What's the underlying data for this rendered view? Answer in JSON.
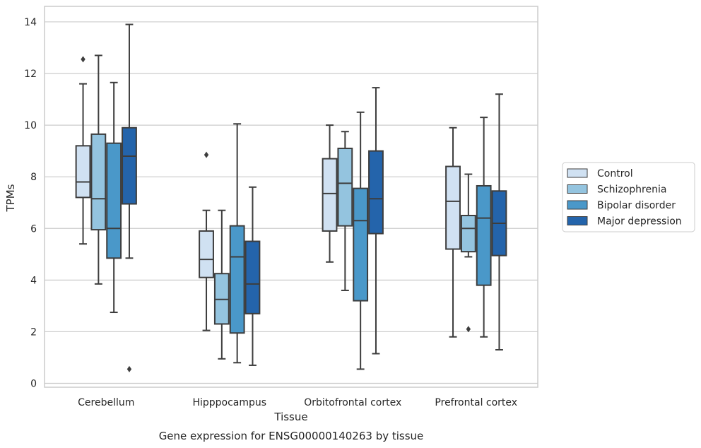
{
  "chart_data": {
    "type": "box",
    "caption": "Gene expression for ENSG00000140263 by tissue",
    "xlabel": "Tissue",
    "ylabel": "TPMs",
    "ylim": [
      -0.15,
      14.6
    ],
    "yticks": [
      0,
      2,
      4,
      6,
      8,
      10,
      12,
      14
    ],
    "grid": "horizontal",
    "legend_position": "right",
    "categories": [
      "Cerebellum",
      "Hipppocampus",
      "Orbitofrontal cortex",
      "Prefrontal cortex"
    ],
    "series": [
      {
        "name": "Control",
        "color": "#d0e1f2",
        "boxes": [
          {
            "whisker_low": 5.4,
            "q1": 7.2,
            "median": 7.8,
            "q3": 9.2,
            "whisker_high": 11.6,
            "outliers": [
              12.55
            ]
          },
          {
            "whisker_low": 2.05,
            "q1": 4.1,
            "median": 4.8,
            "q3": 5.9,
            "whisker_high": 6.7,
            "outliers": [
              8.85
            ]
          },
          {
            "whisker_low": 4.7,
            "q1": 5.9,
            "median": 7.35,
            "q3": 8.7,
            "whisker_high": 10.0,
            "outliers": []
          },
          {
            "whisker_low": 1.8,
            "q1": 5.2,
            "median": 7.05,
            "q3": 8.4,
            "whisker_high": 9.9,
            "outliers": []
          }
        ]
      },
      {
        "name": "Schizophrenia",
        "color": "#94c4df",
        "boxes": [
          {
            "whisker_low": 3.85,
            "q1": 5.95,
            "median": 7.15,
            "q3": 9.65,
            "whisker_high": 12.7,
            "outliers": []
          },
          {
            "whisker_low": 0.95,
            "q1": 2.3,
            "median": 3.25,
            "q3": 4.25,
            "whisker_high": 6.7,
            "outliers": []
          },
          {
            "whisker_low": 3.6,
            "q1": 6.1,
            "median": 7.75,
            "q3": 9.1,
            "whisker_high": 9.75,
            "outliers": []
          },
          {
            "whisker_low": 4.9,
            "q1": 5.1,
            "median": 6.0,
            "q3": 6.5,
            "whisker_high": 8.1,
            "outliers": [
              2.1
            ]
          }
        ]
      },
      {
        "name": "Bipolar disorder",
        "color": "#4a98c9",
        "boxes": [
          {
            "whisker_low": 2.75,
            "q1": 4.85,
            "median": 6.0,
            "q3": 9.3,
            "whisker_high": 11.65,
            "outliers": []
          },
          {
            "whisker_low": 0.8,
            "q1": 1.95,
            "median": 4.9,
            "q3": 6.1,
            "whisker_high": 10.05,
            "outliers": []
          },
          {
            "whisker_low": 0.55,
            "q1": 3.2,
            "median": 6.3,
            "q3": 7.55,
            "whisker_high": 10.5,
            "outliers": []
          },
          {
            "whisker_low": 1.8,
            "q1": 3.8,
            "median": 6.4,
            "q3": 7.65,
            "whisker_high": 10.3,
            "outliers": []
          }
        ]
      },
      {
        "name": "Major depression",
        "color": "#2464ab",
        "boxes": [
          {
            "whisker_low": 4.85,
            "q1": 6.95,
            "median": 8.8,
            "q3": 9.9,
            "whisker_high": 13.9,
            "outliers": [
              0.55
            ]
          },
          {
            "whisker_low": 0.7,
            "q1": 2.7,
            "median": 3.85,
            "q3": 5.5,
            "whisker_high": 7.6,
            "outliers": []
          },
          {
            "whisker_low": 1.15,
            "q1": 5.8,
            "median": 7.15,
            "q3": 9.0,
            "whisker_high": 11.45,
            "outliers": []
          },
          {
            "whisker_low": 1.3,
            "q1": 4.95,
            "median": 6.2,
            "q3": 7.45,
            "whisker_high": 11.2,
            "outliers": []
          }
        ]
      }
    ]
  }
}
